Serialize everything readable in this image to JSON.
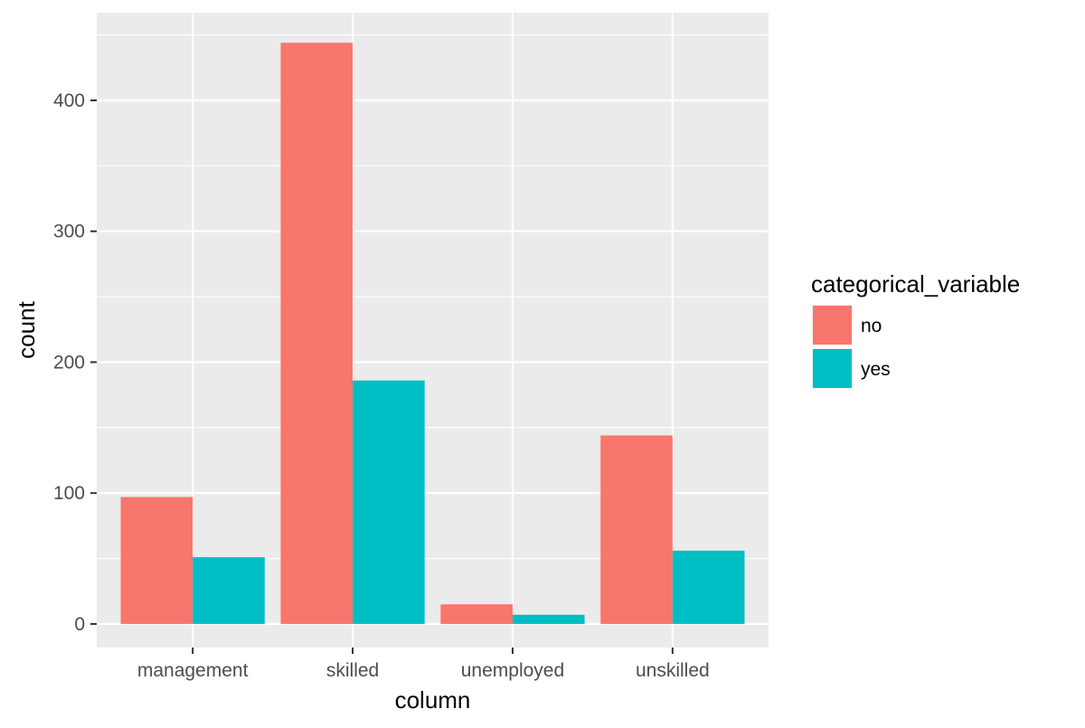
{
  "chart_data": {
    "type": "bar",
    "categories": [
      "management",
      "skilled",
      "unemployed",
      "unskilled"
    ],
    "series": [
      {
        "name": "no",
        "color": "#F8766D",
        "values": [
          97,
          444,
          15,
          144
        ]
      },
      {
        "name": "yes",
        "color": "#00BFC4",
        "values": [
          51,
          186,
          7,
          56
        ]
      }
    ],
    "title": "",
    "xlabel": "column",
    "ylabel": "count",
    "ylim": [
      -18,
      467
    ],
    "yticks": [
      0,
      100,
      200,
      300,
      400
    ],
    "ytick_labels": [
      "0",
      "100",
      "200",
      "300",
      "400"
    ],
    "grid": true,
    "panel_background": "#EBEBEB",
    "grid_color": "#FFFFFF",
    "legend": {
      "title": "categorical_variable",
      "position": "right",
      "entries": [
        "no",
        "yes"
      ]
    }
  }
}
